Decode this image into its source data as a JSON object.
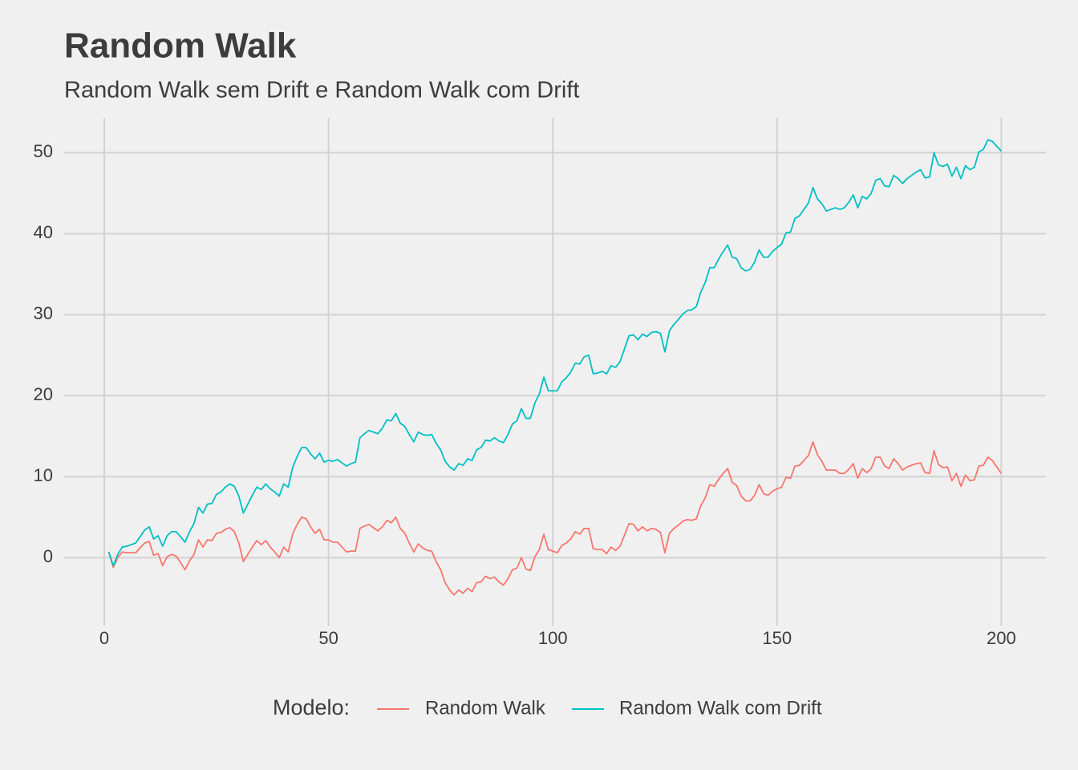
{
  "chart_data": {
    "type": "line",
    "title": "Random Walk",
    "subtitle": "Random Walk sem Drift e Random Walk com Drift",
    "legend_title": "Modelo:",
    "legend_position": "bottom",
    "grid": true,
    "x": [
      1,
      2,
      3,
      4,
      5,
      6,
      7,
      8,
      9,
      10,
      11,
      12,
      13,
      14,
      15,
      16,
      17,
      18,
      19,
      20,
      21,
      22,
      23,
      24,
      25,
      26,
      27,
      28,
      29,
      30,
      31,
      32,
      33,
      34,
      35,
      36,
      37,
      38,
      39,
      40,
      41,
      42,
      43,
      44,
      45,
      46,
      47,
      48,
      49,
      50,
      51,
      52,
      53,
      54,
      55,
      56,
      57,
      58,
      59,
      60,
      61,
      62,
      63,
      64,
      65,
      66,
      67,
      68,
      69,
      70,
      71,
      72,
      73,
      74,
      75,
      76,
      77,
      78,
      79,
      80,
      81,
      82,
      83,
      84,
      85,
      86,
      87,
      88,
      89,
      90,
      91,
      92,
      93,
      94,
      95,
      96,
      97,
      98,
      99,
      100,
      101,
      102,
      103,
      104,
      105,
      106,
      107,
      108,
      109,
      110,
      111,
      112,
      113,
      114,
      115,
      116,
      117,
      118,
      119,
      120,
      121,
      122,
      123,
      124,
      125,
      126,
      127,
      128,
      129,
      130,
      131,
      132,
      133,
      134,
      135,
      136,
      137,
      138,
      139,
      140,
      141,
      142,
      143,
      144,
      145,
      146,
      147,
      148,
      149,
      150,
      151,
      152,
      153,
      154,
      155,
      156,
      157,
      158,
      159,
      160,
      161,
      162,
      163,
      164,
      165,
      166,
      167,
      168,
      169,
      170,
      171,
      172,
      173,
      174,
      175,
      176,
      177,
      178,
      179,
      180,
      181,
      182,
      183,
      184,
      185,
      186,
      187,
      188,
      189,
      190,
      191,
      192,
      193,
      194,
      195,
      196,
      197,
      198,
      199,
      200
    ],
    "xlim": [
      -8.95,
      209.95
    ],
    "xticks": [
      0,
      50,
      100,
      150,
      200
    ],
    "ylim": [
      -8.4,
      54.3
    ],
    "yticks": [
      0,
      10,
      20,
      30,
      40,
      50
    ],
    "series": [
      {
        "name": "Random Walk",
        "color": "#F8766D",
        "values": [
          0.7,
          -1.2,
          0,
          0.7,
          0.6,
          0.6,
          0.6,
          1.2,
          1.8,
          2,
          0.3,
          0.5,
          -1,
          0.1,
          0.4,
          0.2,
          -0.6,
          -1.5,
          -0.4,
          0.4,
          2.2,
          1.3,
          2.2,
          2.1,
          3,
          3.1,
          3.5,
          3.7,
          3.2,
          1.8,
          -0.5,
          0.4,
          1.3,
          2.1,
          1.6,
          2.1,
          1.3,
          0.7,
          0,
          1.3,
          0.7,
          2.9,
          4.1,
          5,
          4.8,
          3.8,
          3,
          3.5,
          2.2,
          2.2,
          1.9,
          1.9,
          1.3,
          0.7,
          0.8,
          0.8,
          3.6,
          3.9,
          4.1,
          3.7,
          3.3,
          3.8,
          4.6,
          4.3,
          5,
          3.6,
          3,
          1.8,
          0.7,
          1.7,
          1.2,
          0.9,
          0.8,
          -0.5,
          -1.5,
          -3.1,
          -4,
          -4.6,
          -4,
          -4.4,
          -3.8,
          -4.2,
          -3.1,
          -3,
          -2.3,
          -2.6,
          -2.4,
          -3,
          -3.4,
          -2.6,
          -1.5,
          -1.3,
          0,
          -1.4,
          -1.6,
          0.1,
          1,
          2.9,
          1,
          0.8,
          0.6,
          1.5,
          1.8,
          2.3,
          3.2,
          2.9,
          3.6,
          3.6,
          1.1,
          1,
          1,
          0.5,
          1.3,
          0.9,
          1.4,
          2.8,
          4.2,
          4.1,
          3.3,
          3.8,
          3.3,
          3.6,
          3.5,
          3.1,
          0.6,
          3,
          3.6,
          4,
          4.5,
          4.7,
          4.6,
          4.8,
          6.4,
          7.4,
          9,
          8.8,
          9.7,
          10.4,
          11,
          9.3,
          8.9,
          7.6,
          7,
          7,
          7.7,
          9,
          7.9,
          7.7,
          8.2,
          8.5,
          8.7,
          9.9,
          9.8,
          11.3,
          11.4,
          12,
          12.6,
          14.3,
          12.7,
          11.9,
          10.8,
          10.8,
          10.8,
          10.4,
          10.4,
          10.9,
          11.6,
          9.8,
          11,
          10.5,
          11,
          12.4,
          12.4,
          11.3,
          11,
          12.2,
          11.6,
          10.8,
          11.2,
          11.4,
          11.6,
          11.7,
          10.5,
          10.4,
          13.2,
          11.5,
          11.1,
          11.2,
          9.5,
          10.4,
          8.8,
          10.2,
          9.5,
          9.6,
          11.3,
          11.4,
          12.4,
          12,
          11.2,
          10.4
        ]
      },
      {
        "name": "Random Walk com Drift",
        "color": "#00BFC4",
        "values": [
          0.7,
          -1,
          0.4,
          1.3,
          1.4,
          1.6,
          1.8,
          2.6,
          3.4,
          3.8,
          2.3,
          2.7,
          1.4,
          2.7,
          3.2,
          3.2,
          2.6,
          1.9,
          3.2,
          4.2,
          6.2,
          5.5,
          6.6,
          6.7,
          7.8,
          8.1,
          8.7,
          9.1,
          8.8,
          7.6,
          5.5,
          6.6,
          7.7,
          8.7,
          8.4,
          9.1,
          8.5,
          8.1,
          7.6,
          9.1,
          8.7,
          11.1,
          12.5,
          13.6,
          13.6,
          12.8,
          12.2,
          12.9,
          11.8,
          12,
          11.9,
          12.1,
          11.7,
          11.3,
          11.6,
          11.8,
          14.8,
          15.3,
          15.7,
          15.5,
          15.3,
          16,
          17,
          16.9,
          17.8,
          16.6,
          16.2,
          15.2,
          14.3,
          15.5,
          15.2,
          15.1,
          15.2,
          14.1,
          13.3,
          11.9,
          11.2,
          10.8,
          11.6,
          11.4,
          12.2,
          12,
          13.3,
          13.6,
          14.5,
          14.4,
          14.8,
          14.4,
          14.2,
          15.2,
          16.5,
          16.9,
          18.4,
          17.2,
          17.2,
          19.1,
          20.2,
          22.3,
          20.6,
          20.6,
          20.6,
          21.7,
          22.2,
          22.9,
          24,
          23.9,
          24.8,
          25,
          22.7,
          22.8,
          23,
          22.7,
          23.7,
          23.5,
          24.2,
          25.8,
          27.4,
          27.5,
          26.9,
          27.6,
          27.3,
          27.8,
          27.9,
          27.7,
          25.4,
          28,
          28.8,
          29.4,
          30.1,
          30.5,
          30.6,
          31,
          32.8,
          34,
          35.8,
          35.8,
          36.9,
          37.8,
          38.6,
          37.1,
          36.9,
          35.8,
          35.4,
          35.6,
          36.5,
          38,
          37.1,
          37.1,
          37.8,
          38.3,
          38.7,
          40.1,
          40.2,
          41.9,
          42.2,
          43,
          43.8,
          45.7,
          44.3,
          43.7,
          42.8,
          43,
          43.2,
          43,
          43.2,
          43.9,
          44.8,
          43.2,
          44.6,
          44.3,
          45,
          46.6,
          46.8,
          45.9,
          45.8,
          47.2,
          46.8,
          46.2,
          46.8,
          47.2,
          47.6,
          47.9,
          46.9,
          47,
          50,
          48.5,
          48.3,
          48.6,
          47.1,
          48.2,
          46.8,
          48.4,
          47.9,
          48.2,
          50.1,
          50.4,
          51.6,
          51.4,
          50.8,
          50.2
        ]
      }
    ]
  }
}
